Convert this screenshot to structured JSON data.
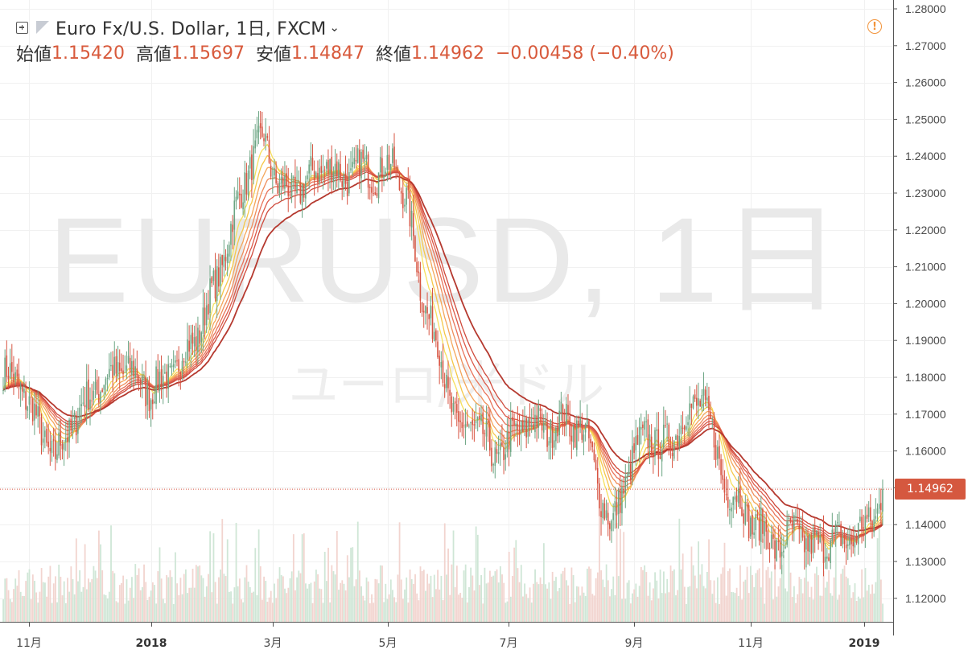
{
  "header": {
    "symbol_title": "Euro Fx/U.S. Dollar, 1日, FXCM",
    "ohlc": {
      "open_label": "始値",
      "open": "1.15420",
      "high_label": "高値",
      "high": "1.15697",
      "low_label": "安値",
      "low": "1.14847",
      "close_label": "終値",
      "close": "1.14962",
      "change": "−0.00458 (−0.40%)"
    }
  },
  "icons": {
    "add": "plus-square-icon",
    "symbol": "flag-icon",
    "dropdown": "chevron-down-icon",
    "alert": "alert-circle-icon"
  },
  "watermark": {
    "main": "EURUSD, 1日",
    "sub": "ユーロ/米ドル"
  },
  "last_price_label": "1.14962",
  "colors": {
    "up": "#6ba583",
    "down": "#d75442",
    "price_line": "#d75442",
    "ma_ribbon": [
      "#f6e05e",
      "#f5c74a",
      "#f4a65a",
      "#ee8d5a",
      "#e8735a",
      "#dc5a4a",
      "#cf4a3c",
      "#b5392f"
    ],
    "volume_up": "#cfe6d6",
    "volume_down": "#f2d4cf"
  },
  "chart_data": {
    "type": "candlestick",
    "symbol": "EURUSD",
    "interval": "1日",
    "exchange": "FXCM",
    "y_range": [
      1.115,
      1.281
    ],
    "y_ticks": [
      "1.28000",
      "1.27000",
      "1.26000",
      "1.25000",
      "1.24000",
      "1.23000",
      "1.22000",
      "1.21000",
      "1.20000",
      "1.19000",
      "1.18000",
      "1.17000",
      "1.16000",
      "1.15000",
      "1.14000",
      "1.13000",
      "1.12000"
    ],
    "x_ticks": [
      "11月",
      "2018",
      "3月",
      "5月",
      "7月",
      "9月",
      "11月",
      "2019"
    ],
    "last_price": 1.14962,
    "series_anchors": [
      [
        0,
        1.181
      ],
      [
        10,
        1.178
      ],
      [
        20,
        1.167
      ],
      [
        30,
        1.158
      ],
      [
        40,
        1.168
      ],
      [
        55,
        1.178
      ],
      [
        70,
        1.183
      ],
      [
        85,
        1.176
      ],
      [
        100,
        1.183
      ],
      [
        112,
        1.192
      ],
      [
        122,
        1.205
      ],
      [
        132,
        1.222
      ],
      [
        142,
        1.238
      ],
      [
        150,
        1.245
      ],
      [
        158,
        1.232
      ],
      [
        165,
        1.23
      ],
      [
        175,
        1.233
      ],
      [
        185,
        1.238
      ],
      [
        195,
        1.234
      ],
      [
        205,
        1.237
      ],
      [
        215,
        1.235
      ],
      [
        225,
        1.238
      ],
      [
        232,
        1.228
      ],
      [
        240,
        1.205
      ],
      [
        250,
        1.188
      ],
      [
        262,
        1.165
      ],
      [
        272,
        1.168
      ],
      [
        282,
        1.158
      ],
      [
        292,
        1.163
      ],
      [
        302,
        1.168
      ],
      [
        312,
        1.166
      ],
      [
        322,
        1.168
      ],
      [
        332,
        1.167
      ],
      [
        338,
        1.16
      ],
      [
        344,
        1.148
      ],
      [
        350,
        1.138
      ],
      [
        356,
        1.15
      ],
      [
        362,
        1.157
      ],
      [
        370,
        1.166
      ],
      [
        378,
        1.16
      ],
      [
        386,
        1.165
      ],
      [
        395,
        1.17
      ],
      [
        402,
        1.176
      ],
      [
        406,
        1.168
      ],
      [
        410,
        1.16
      ],
      [
        416,
        1.15
      ],
      [
        424,
        1.146
      ],
      [
        432,
        1.14
      ],
      [
        440,
        1.137
      ],
      [
        448,
        1.133
      ],
      [
        456,
        1.14
      ],
      [
        464,
        1.133
      ],
      [
        474,
        1.136
      ],
      [
        484,
        1.135
      ],
      [
        492,
        1.138
      ],
      [
        500,
        1.141
      ],
      [
        506,
        1.149
      ]
    ],
    "ma_periods": [
      10,
      15,
      20,
      25,
      30,
      35,
      40,
      55
    ]
  }
}
